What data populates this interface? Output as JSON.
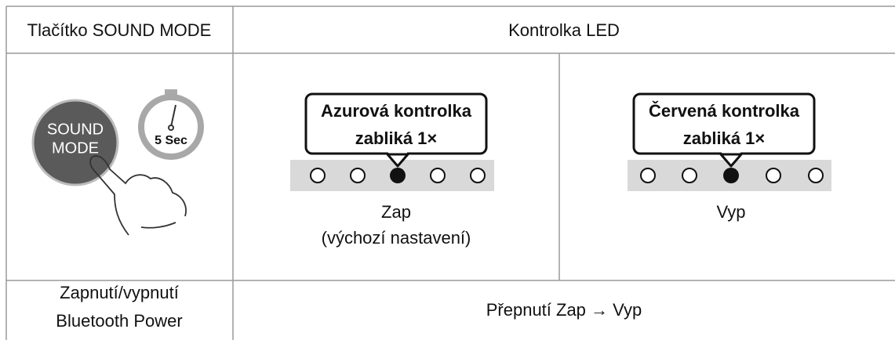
{
  "table": {
    "header": [
      "Tlačítko SOUND MODE",
      "Kontrolka LED"
    ],
    "illustration": {
      "button": [
        "SOUND",
        "MODE"
      ],
      "timer": "5 Sec"
    },
    "states": [
      {
        "callout": [
          "Azurová kontrolka",
          "zabliká 1×"
        ],
        "label": [
          "Zap",
          "(výchozí nastavení)"
        ]
      },
      {
        "callout": [
          "Červená kontrolka",
          "zabliká 1×"
        ],
        "label": [
          "Vyp"
        ]
      }
    ],
    "footer": {
      "label": [
        "Zapnutí/vypnutí",
        "Bluetooth Power"
      ],
      "action": "Přepnutí Zap → Vyp"
    }
  }
}
